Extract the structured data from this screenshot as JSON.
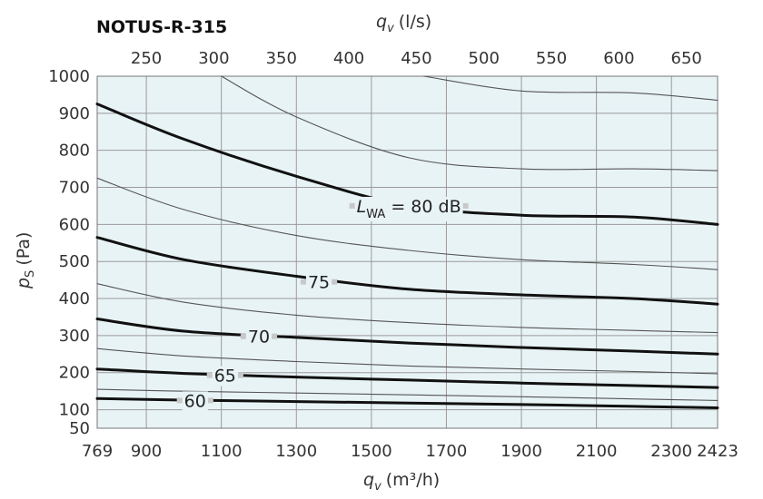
{
  "chart_data": {
    "type": "line",
    "title": "NOTUS-R-315",
    "top_axis_label": {
      "symbol": "q",
      "sub": "v",
      "unit": "(l/s)"
    },
    "bottom_axis_label": {
      "symbol": "q",
      "sub": "v",
      "unit": "(m³/h)"
    },
    "y_axis_label": {
      "symbol": "p",
      "sub": "S",
      "unit": "(Pa)"
    },
    "x_ticks": [
      769,
      900,
      1100,
      1300,
      1500,
      1700,
      1900,
      2100,
      2300,
      2423
    ],
    "x_gridlines": [
      900,
      1100,
      1300,
      1500,
      1700,
      1900,
      2100,
      2300
    ],
    "x_top_ticks": [
      250,
      300,
      350,
      400,
      450,
      500,
      550,
      600,
      650
    ],
    "xlim": [
      769,
      2423
    ],
    "y_ticks": [
      50,
      100,
      200,
      300,
      400,
      500,
      600,
      700,
      800,
      900,
      1000
    ],
    "y_gridlines": [
      100,
      200,
      300,
      400,
      500,
      600,
      700,
      800,
      900
    ],
    "ylim": [
      50,
      1000
    ],
    "grid": true,
    "colors": {
      "background": "#e8f3f6",
      "grid": "#9a9a9a",
      "thick_line": "#111111",
      "thin_line": "#555555",
      "label_gap": "#c8c8c8"
    },
    "series": [
      {
        "label": "60",
        "thick": true,
        "x": [
          769,
          1000,
          1300,
          1600,
          1900,
          2200,
          2423
        ],
        "y": [
          130,
          126,
          122,
          118,
          114,
          109,
          105
        ],
        "label_x": 1030,
        "label_y": 125
      },
      {
        "thick": false,
        "x": [
          769,
          1000,
          1300,
          1600,
          1900,
          2200,
          2423
        ],
        "y": [
          155,
          150,
          145,
          140,
          135,
          129,
          125
        ]
      },
      {
        "label": "65",
        "thick": true,
        "x": [
          769,
          1000,
          1300,
          1600,
          1900,
          2200,
          2423
        ],
        "y": [
          210,
          198,
          188,
          180,
          172,
          165,
          160
        ]
      },
      {
        "thick": false,
        "x": [
          769,
          1000,
          1300,
          1600,
          1900,
          2200,
          2423
        ],
        "y": [
          265,
          245,
          230,
          218,
          210,
          203,
          197
        ]
      },
      {
        "label": "70",
        "thick": true,
        "x": [
          769,
          1000,
          1300,
          1600,
          1900,
          2200,
          2423
        ],
        "y": [
          345,
          312,
          295,
          280,
          268,
          258,
          250
        ]
      },
      {
        "thick": false,
        "x": [
          769,
          1000,
          1300,
          1600,
          1900,
          2200,
          2423
        ],
        "y": [
          440,
          390,
          355,
          335,
          322,
          314,
          308
        ]
      },
      {
        "label": "75",
        "thick": true,
        "x": [
          769,
          1000,
          1300,
          1600,
          1900,
          2200,
          2423
        ],
        "y": [
          565,
          505,
          460,
          425,
          410,
          400,
          385
        ]
      },
      {
        "thick": false,
        "x": [
          769,
          1000,
          1300,
          1600,
          1900,
          2200,
          2423
        ],
        "y": [
          725,
          640,
          570,
          530,
          505,
          492,
          478
        ]
      },
      {
        "label": "L_WA = 80 dB",
        "thick": true,
        "x": [
          769,
          1000,
          1300,
          1600,
          1900,
          2200,
          2423
        ],
        "y": [
          925,
          830,
          730,
          650,
          625,
          620,
          600
        ]
      },
      {
        "thick": false,
        "x": [
          1100,
          1300,
          1600,
          1900,
          2200,
          2423
        ],
        "y": [
          1000,
          890,
          780,
          750,
          750,
          745
        ]
      },
      {
        "thick": false,
        "x": [
          1640,
          1900,
          2200,
          2423
        ],
        "y": [
          1000,
          960,
          955,
          935
        ]
      }
    ],
    "contour_labels": [
      {
        "text": "60",
        "x": 1030,
        "y": 125
      },
      {
        "text": "65",
        "x": 1110,
        "y": 193
      },
      {
        "text": "70",
        "x": 1200,
        "y": 298
      },
      {
        "text": "75",
        "x": 1360,
        "y": 445
      },
      {
        "text": "80 dB",
        "prefix": "L",
        "prefix_sub": "WA",
        "x": 1600,
        "y": 650
      }
    ]
  }
}
